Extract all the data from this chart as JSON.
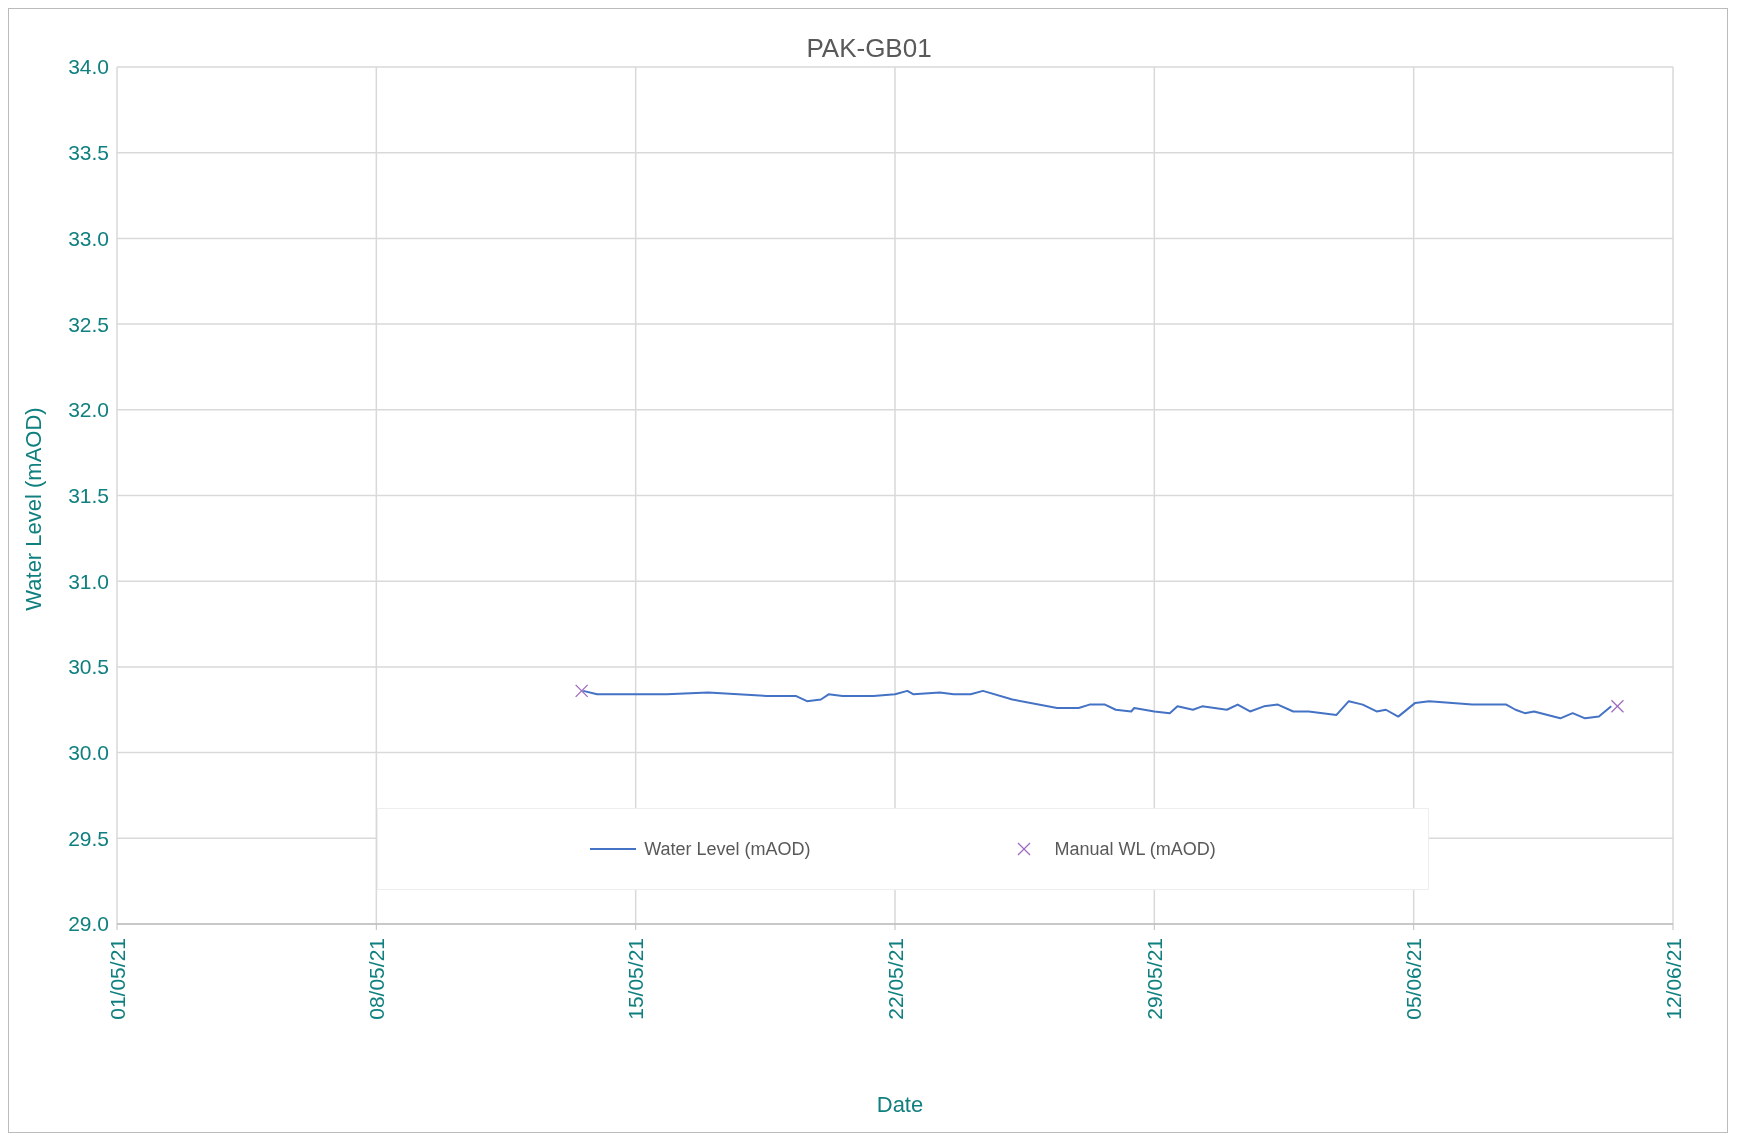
{
  "chart_data": {
    "type": "line",
    "title": "PAK-GB01",
    "xlabel": "Date",
    "ylabel": "Water Level (mAOD)",
    "xlim": [
      "--05-01",
      "--06-12"
    ],
    "xticks": [
      {
        "value": "--05-01",
        "label": "01/05/21"
      },
      {
        "value": "--05-08",
        "label": "08/05/21"
      },
      {
        "value": "--05-15",
        "label": "15/05/21"
      },
      {
        "value": "--05-22",
        "label": "22/05/21"
      },
      {
        "value": "--05-29",
        "label": "29/05/21"
      },
      {
        "value": "--06-05",
        "label": "05/06/21"
      },
      {
        "value": "--06-12",
        "label": "12/06/21"
      }
    ],
    "ylim": [
      29,
      34
    ],
    "yticks": [
      {
        "value": 29,
        "label": "29.0"
      },
      {
        "value": 29.5,
        "label": "29.5"
      },
      {
        "value": 30,
        "label": "30.0"
      },
      {
        "value": 30.5,
        "label": "30.5"
      },
      {
        "value": 31,
        "label": "31.0"
      },
      {
        "value": 31.5,
        "label": "31.5"
      },
      {
        "value": 32,
        "label": "32.0"
      },
      {
        "value": 32.5,
        "label": "32.5"
      },
      {
        "value": 33,
        "label": "33.0"
      },
      {
        "value": 33.5,
        "label": "33.5"
      },
      {
        "value": 34,
        "label": "34.0"
      }
    ],
    "grid": true,
    "legend": "bottom",
    "series": [
      {
        "name": "Water Level (mAOD)",
        "color": "#4472c4",
        "marker": "none",
        "line_style": "solid",
        "x": [
          "--05-13T14:00",
          "--05-13T23:00",
          "--05-15T20:00",
          "--05-16T23:00",
          "--05-18T13:00",
          "--05-19T08:00",
          "--05-19T15:00",
          "--05-20T00:00",
          "--05-20T05:00",
          "--05-20T14:00",
          "--05-21T10:00",
          "--05-22T00:00",
          "--05-22T08:00",
          "--05-22T12:00",
          "--05-23T05:00",
          "--05-23T14:00",
          "--05-24T01:00",
          "--05-24T09:00",
          "--05-25T04:00",
          "--05-26T09:00",
          "--05-26T23:00",
          "--05-27T06:00",
          "--05-27T16:00",
          "--05-27T23:00",
          "--05-28T09:00",
          "--05-28T11:00",
          "--05-29T00:00",
          "--05-29T10:00",
          "--05-29T15:00",
          "--05-30T01:00",
          "--05-30T07:00",
          "--05-30T23:00",
          "--05-31T06:00",
          "--05-31T14:00",
          "--05-31T23:00",
          "--06-01T08:00",
          "--06-01T18:00",
          "--06-02T04:00",
          "--06-02T22:00",
          "--06-03T06:00",
          "--06-03T15:00",
          "--06-04T00:00",
          "--06-04T06:00",
          "--06-04T14:00",
          "--06-05T01:00",
          "--06-05T10:00",
          "--06-06T14:00",
          "--06-07T12:00",
          "--06-07T18:00",
          "--06-08T00:00",
          "--06-08T06:00",
          "--06-08T23:00",
          "--06-09T07:00",
          "--06-09T15:00",
          "--06-10T00:00",
          "--06-10T08:00"
        ],
        "values": [
          30.36,
          30.34,
          30.34,
          30.35,
          30.33,
          30.33,
          30.3,
          30.31,
          30.34,
          30.33,
          30.33,
          30.34,
          30.36,
          30.34,
          30.35,
          30.34,
          30.34,
          30.36,
          30.31,
          30.26,
          30.26,
          30.28,
          30.28,
          30.25,
          30.24,
          30.26,
          30.24,
          30.23,
          30.27,
          30.25,
          30.27,
          30.25,
          30.28,
          30.24,
          30.27,
          30.28,
          30.24,
          30.24,
          30.22,
          30.3,
          30.28,
          30.24,
          30.25,
          30.21,
          30.29,
          30.3,
          30.28,
          30.28,
          30.25,
          30.23,
          30.24,
          30.2,
          30.23,
          30.2,
          30.21,
          30.27
        ]
      },
      {
        "name": "Manual WL (mAOD)",
        "type": "scatter",
        "color": "#9e6bc0",
        "marker": "cross",
        "x": [
          "--05-13T13:00",
          "--06-10T12:00"
        ],
        "values": [
          30.36,
          30.27
        ]
      }
    ]
  }
}
